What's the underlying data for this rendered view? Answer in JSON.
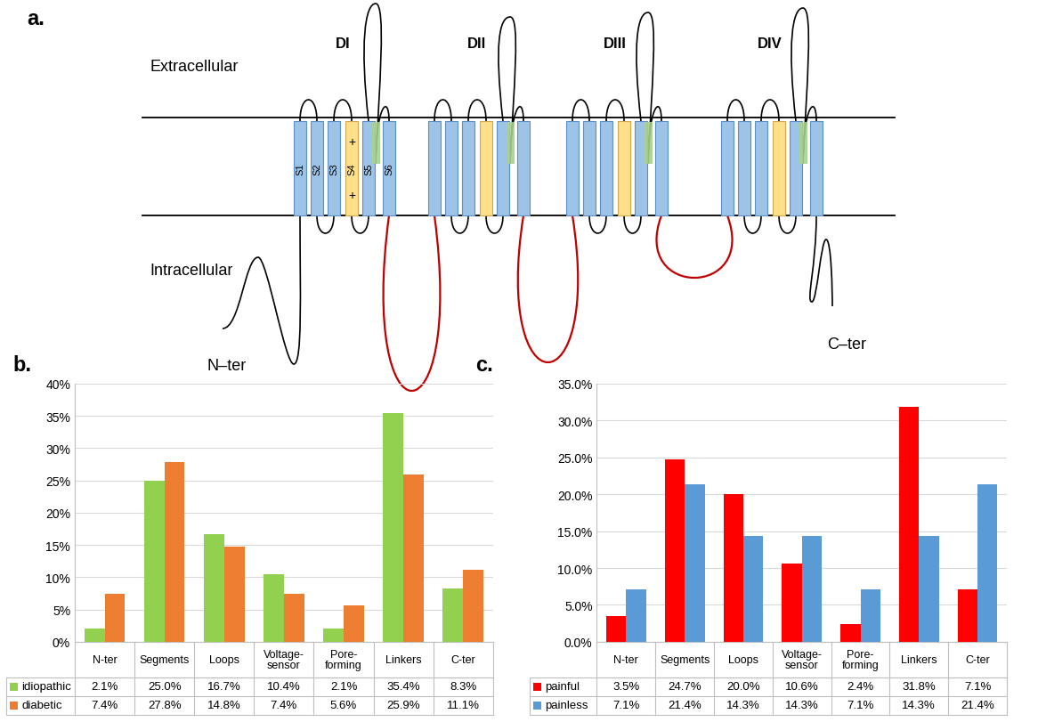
{
  "diagram": {
    "title": "a.",
    "regions": [
      "Extracellular",
      "Intracellular"
    ],
    "domains": [
      "DI",
      "DII",
      "DIII",
      "DIV"
    ],
    "segments": [
      "S1",
      "S2",
      "S3",
      "S4",
      "S5",
      "S6"
    ],
    "charges": [
      "+",
      "+"
    ],
    "termini": [
      "N–ter",
      "C–ter"
    ]
  },
  "chart_data": [
    {
      "type": "bar",
      "title": "b.",
      "categories": [
        "N-ter",
        "Segments",
        "Loops",
        "Voltage-\nsensor",
        "Pore-\nforming",
        "Linkers",
        "C-ter"
      ],
      "series": [
        {
          "name": "idiopathic",
          "color": "#92d050",
          "values": [
            2.1,
            25.0,
            16.7,
            10.4,
            2.1,
            35.4,
            8.3
          ],
          "value_labels": [
            "2.1%",
            "25.0%",
            "16.7%",
            "10.4%",
            "2.1%",
            "35.4%",
            "8.3%"
          ]
        },
        {
          "name": "diabetic",
          "color": "#ed7d31",
          "values": [
            7.4,
            27.8,
            14.8,
            7.4,
            5.6,
            25.9,
            11.1
          ],
          "value_labels": [
            "7.4%",
            "27.8%",
            "14.8%",
            "7.4%",
            "5.6%",
            "25.9%",
            "11.1%"
          ]
        }
      ],
      "ylim": [
        0,
        40
      ],
      "yticks": [
        {
          "value": 0,
          "label": "0%"
        },
        {
          "value": 5,
          "label": "5%"
        },
        {
          "value": 10,
          "label": "10%"
        },
        {
          "value": 15,
          "label": "15%"
        },
        {
          "value": 20,
          "label": "20%"
        },
        {
          "value": 25,
          "label": "25%"
        },
        {
          "value": 30,
          "label": "30%"
        },
        {
          "value": 35,
          "label": "35%"
        },
        {
          "value": 40,
          "label": "40%"
        }
      ],
      "grid": true
    },
    {
      "type": "bar",
      "title": "c.",
      "categories": [
        "N-ter",
        "Segments",
        "Loops",
        "Voltage-\nsensor",
        "Pore-\nforming",
        "Linkers",
        "C-ter"
      ],
      "series": [
        {
          "name": "painful",
          "color": "#ff0000",
          "values": [
            3.5,
            24.7,
            20.0,
            10.6,
            2.4,
            31.8,
            7.1
          ],
          "value_labels": [
            "3.5%",
            "24.7%",
            "20.0%",
            "10.6%",
            "2.4%",
            "31.8%",
            "7.1%"
          ]
        },
        {
          "name": "painless",
          "color": "#5b9bd5",
          "values": [
            7.1,
            21.4,
            14.3,
            14.3,
            7.1,
            14.3,
            21.4
          ],
          "value_labels": [
            "7.1%",
            "21.4%",
            "14.3%",
            "14.3%",
            "7.1%",
            "14.3%",
            "21.4%"
          ]
        }
      ],
      "ylim": [
        0,
        35
      ],
      "yticks": [
        {
          "value": 0,
          "label": "0.0%"
        },
        {
          "value": 5,
          "label": "5.0%"
        },
        {
          "value": 10,
          "label": "10.0%"
        },
        {
          "value": 15,
          "label": "15.0%"
        },
        {
          "value": 20,
          "label": "20.0%"
        },
        {
          "value": 25,
          "label": "25.0%"
        },
        {
          "value": 30,
          "label": "30.0%"
        },
        {
          "value": 35,
          "label": "35.0%"
        }
      ],
      "grid": true
    }
  ]
}
